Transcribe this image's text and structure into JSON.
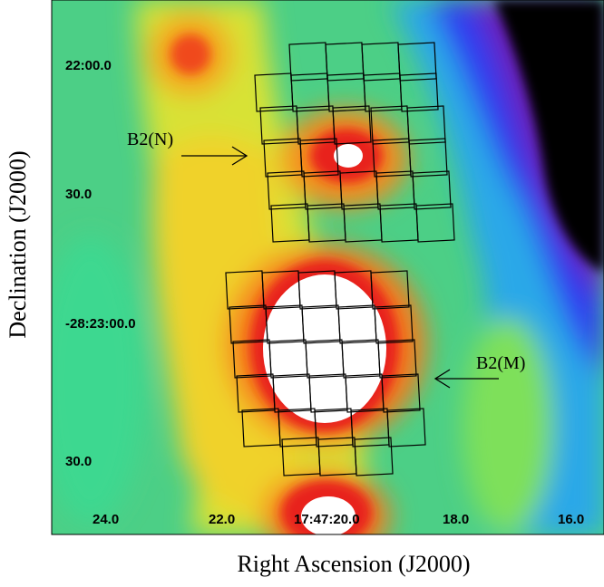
{
  "axes": {
    "y_label": "Declination (J2000)",
    "x_label": "Right Ascension (J2000)",
    "y_ticks": [
      "22:00.0",
      "30.0",
      "-28:23:00.0",
      "30.0"
    ],
    "x_ticks": [
      "24.0",
      "22.0",
      "17:47:20.0",
      "18.0",
      "16.0"
    ]
  },
  "annotations": {
    "north": "B2(N)",
    "middle": "B2(M)"
  },
  "colormap": [
    "#000000",
    "#6a1fb8",
    "#2f3cf0",
    "#1fb8e8",
    "#2ee07a",
    "#9ee83a",
    "#f0e02a",
    "#f58a1c",
    "#e8201c",
    "#ffffff"
  ]
}
